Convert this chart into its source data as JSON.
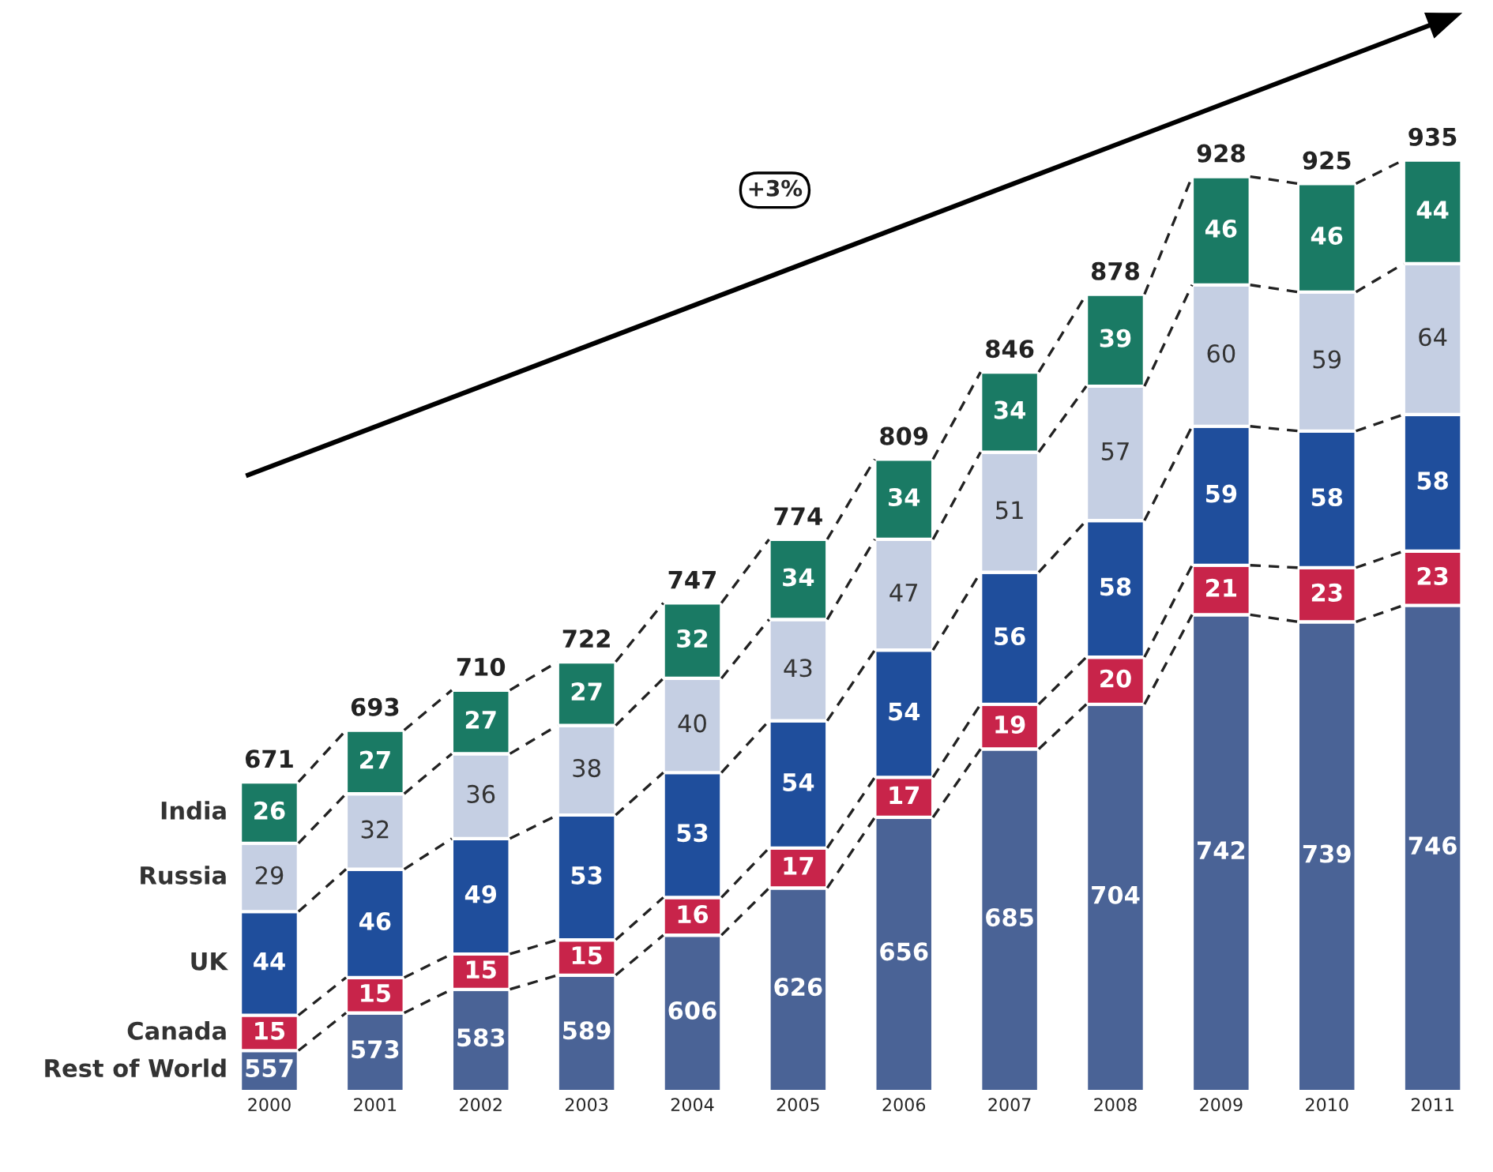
{
  "chart_data": {
    "type": "bar",
    "stacked": true,
    "data_labels": true,
    "legend": false,
    "grid": false,
    "tick_labels": "x",
    "categories": [
      "2000",
      "2001",
      "2002",
      "2003",
      "2004",
      "2005",
      "2006",
      "2007",
      "2008",
      "2009",
      "2010",
      "2011"
    ],
    "series": [
      {
        "name": "Rest of World",
        "color": "#4a6396",
        "values": [
          557,
          573,
          583,
          589,
          606,
          626,
          656,
          685,
          704,
          742,
          739,
          746
        ]
      },
      {
        "name": "Canada",
        "color": "#c8244a",
        "values": [
          15,
          15,
          15,
          15,
          16,
          17,
          17,
          19,
          20,
          21,
          23,
          23
        ]
      },
      {
        "name": "UK",
        "color": "#1f4e9c",
        "values": [
          44,
          46,
          49,
          53,
          53,
          54,
          54,
          56,
          58,
          59,
          58,
          58
        ]
      },
      {
        "name": "Russia",
        "color": "#c5cfe3",
        "values": [
          29,
          32,
          36,
          38,
          40,
          43,
          47,
          51,
          57,
          60,
          59,
          64
        ]
      },
      {
        "name": "India",
        "color": "#1a7a64",
        "values": [
          26,
          27,
          27,
          27,
          32,
          34,
          34,
          34,
          39,
          46,
          46,
          44
        ]
      }
    ],
    "totals": [
      "671",
      "693",
      "710",
      "722",
      "747",
      "774",
      "809",
      "846",
      "878",
      "928",
      "925",
      "935"
    ],
    "annotations": [
      "+3%"
    ]
  }
}
